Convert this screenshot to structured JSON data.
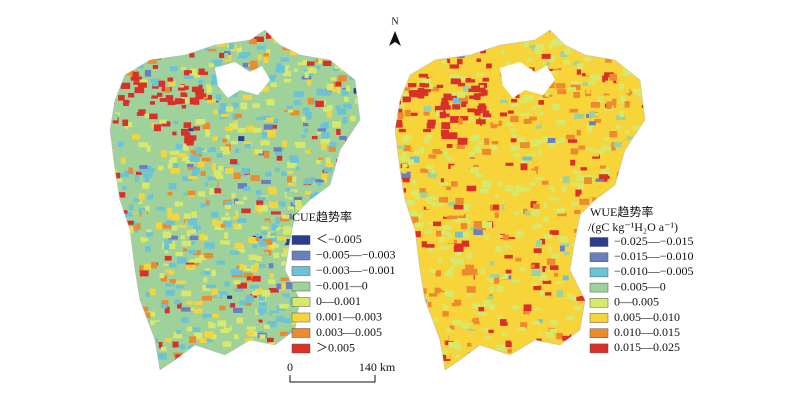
{
  "north": "N",
  "scale_bar": {
    "start": "0",
    "end": "140 km"
  },
  "maps": [
    {
      "legend": {
        "title": "CUE趋势率",
        "items": [
          {
            "label": "＜−0.005",
            "color": "#2d3d8e"
          },
          {
            "label": "−0.005—−0.003",
            "color": "#6a7fc0"
          },
          {
            "label": "−0.003—−0.001",
            "color": "#6cc3d8"
          },
          {
            "label": "−0.001—0",
            "color": "#9fd19b"
          },
          {
            "label": "0—0.001",
            "color": "#d8e86a"
          },
          {
            "label": "0.001—0.003",
            "color": "#f6d43a"
          },
          {
            "label": "0.003—0.005",
            "color": "#ee8a2e"
          },
          {
            "label": "＞0.005",
            "color": "#d9302a"
          }
        ]
      }
    },
    {
      "legend": {
        "title": "WUE趋势率",
        "unit": "/(gC kg⁻¹H₂O a⁻¹)",
        "items": [
          {
            "label": "−0.025—−0.015",
            "color": "#2d3d8e"
          },
          {
            "label": "−0.015—−0.010",
            "color": "#6a7fc0"
          },
          {
            "label": "−0.010—−0.005",
            "color": "#6cc3d8"
          },
          {
            "label": "−0.005—0",
            "color": "#9fd19b"
          },
          {
            "label": "0—0.005",
            "color": "#d8e86a"
          },
          {
            "label": "0.005—0.010",
            "color": "#f6d43a"
          },
          {
            "label": "0.010—0.015",
            "color": "#ee8a2e"
          },
          {
            "label": "0.015—0.025",
            "color": "#d9302a"
          }
        ]
      }
    }
  ]
}
